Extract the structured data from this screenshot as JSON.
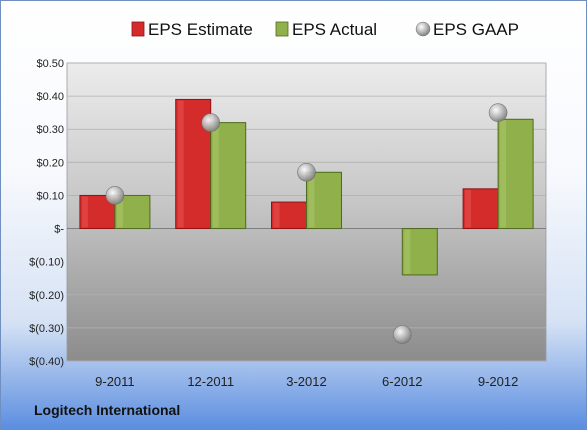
{
  "chart_data": {
    "type": "bar",
    "categories": [
      "9-2011",
      "12-2011",
      "3-2012",
      "6-2012",
      "9-2012"
    ],
    "series": [
      {
        "name": "EPS Estimate",
        "kind": "bar",
        "color": "#d42b2b",
        "values": [
          0.1,
          0.39,
          0.08,
          null,
          0.12
        ]
      },
      {
        "name": "EPS Actual",
        "kind": "bar",
        "color": "#8fb04a",
        "values": [
          0.1,
          0.32,
          0.17,
          -0.14,
          0.33
        ]
      },
      {
        "name": "EPS GAAP",
        "kind": "marker",
        "color": "#a7a7a7",
        "values": [
          0.1,
          0.32,
          0.17,
          -0.32,
          0.35
        ]
      }
    ],
    "ylim": [
      -0.4,
      0.5
    ],
    "yticks": [
      0.5,
      0.4,
      0.3,
      0.2,
      0.1,
      0,
      -0.1,
      -0.2,
      -0.3,
      -0.4
    ],
    "ytick_labels": [
      "$0.50",
      "$0.40",
      "$0.30",
      "$0.20",
      "$0.10",
      "$-",
      "$(0.10)",
      "$(0.20)",
      "$(0.30)",
      "$(0.40)"
    ],
    "grid": true,
    "legend_position": "top"
  },
  "footer": {
    "company": "Logitech International"
  }
}
